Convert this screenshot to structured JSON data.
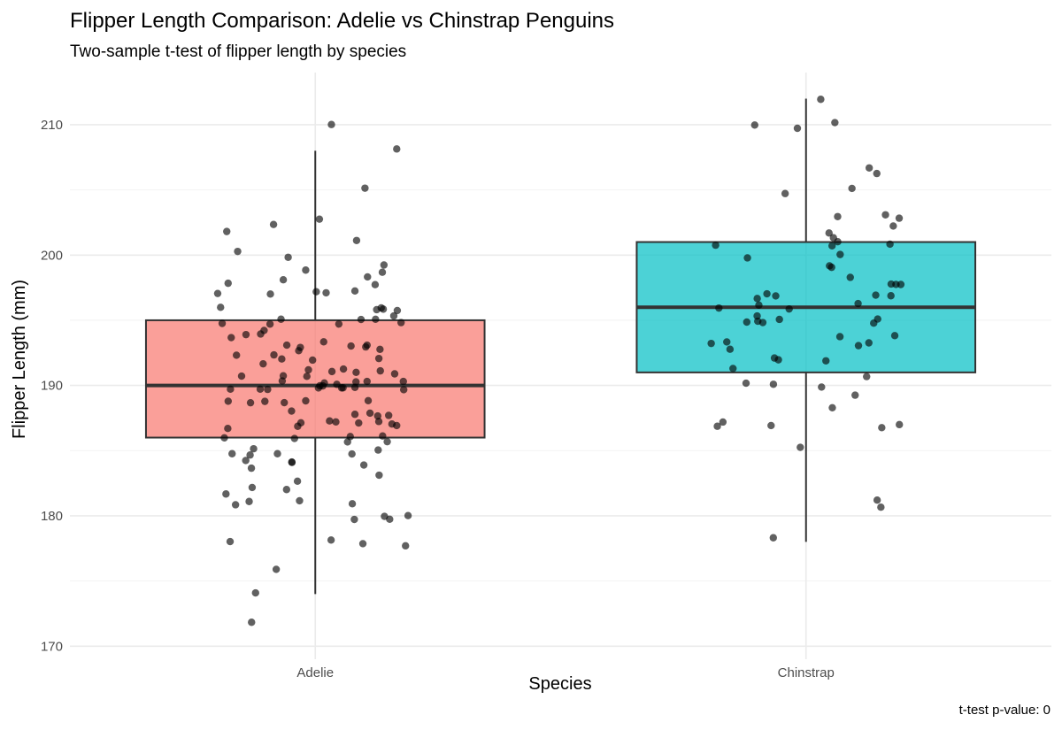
{
  "chart_data": {
    "type": "box",
    "title": "Flipper Length Comparison: Adelie vs Chinstrap Penguins",
    "subtitle": "Two-sample t-test of flipper length by species",
    "xlabel": "Species",
    "ylabel": "Flipper Length (mm)",
    "caption": "t-test p-value: 0",
    "categories": [
      "Adelie",
      "Chinstrap"
    ],
    "ylim": [
      169,
      214
    ],
    "yticks": [
      170,
      180,
      190,
      200,
      210
    ],
    "grid": true,
    "legend": "none",
    "boxes": [
      {
        "category": "Adelie",
        "color": "#f8766d",
        "lower_whisker": 174,
        "q1": 186,
        "median": 190,
        "q3": 195,
        "upper_whisker": 208
      },
      {
        "category": "Chinstrap",
        "color": "#00bfc4",
        "lower_whisker": 178,
        "q1": 191,
        "median": 196,
        "q3": 201,
        "upper_whisker": 212
      }
    ],
    "points": [
      {
        "category": "Adelie",
        "values": [
          210,
          208,
          205,
          203,
          202,
          202,
          201,
          200,
          200,
          199,
          199,
          199,
          198,
          198,
          198,
          198,
          197,
          197,
          197,
          197,
          197,
          196,
          196,
          196,
          196,
          196,
          195,
          195,
          195,
          195,
          195,
          195,
          195,
          195,
          194,
          194,
          194,
          194,
          193,
          193,
          193,
          193,
          193,
          193,
          193,
          193,
          192,
          192,
          192,
          192,
          192,
          192,
          191,
          191,
          191,
          191,
          191,
          191,
          191,
          191,
          191,
          190,
          190,
          190,
          190,
          190,
          190,
          190,
          190,
          190,
          190,
          190,
          190,
          190,
          190,
          190,
          190,
          189,
          189,
          189,
          189,
          189,
          189,
          188,
          188,
          188,
          188,
          188,
          187,
          187,
          187,
          187,
          187,
          187,
          187,
          187,
          187,
          186,
          186,
          186,
          186,
          186,
          186,
          185,
          185,
          185,
          185,
          185,
          185,
          184,
          184,
          184,
          184,
          184,
          183,
          183,
          182,
          182,
          182,
          181,
          181,
          181,
          181,
          180,
          180,
          180,
          180,
          178,
          178,
          178,
          178,
          176,
          174,
          172
        ]
      },
      {
        "category": "Chinstrap",
        "values": [
          212,
          210,
          210,
          210,
          207,
          206,
          205,
          205,
          203,
          203,
          203,
          202,
          202,
          201,
          201,
          201,
          201,
          201,
          200,
          200,
          199,
          199,
          198,
          198,
          198,
          198,
          197,
          197,
          197,
          197,
          197,
          196,
          196,
          196,
          196,
          195,
          195,
          195,
          195,
          195,
          195,
          195,
          194,
          194,
          193,
          193,
          193,
          193,
          193,
          192,
          192,
          192,
          191,
          191,
          190,
          190,
          190,
          189,
          188,
          187,
          187,
          187,
          187,
          187,
          185,
          181,
          181,
          178
        ]
      }
    ]
  }
}
